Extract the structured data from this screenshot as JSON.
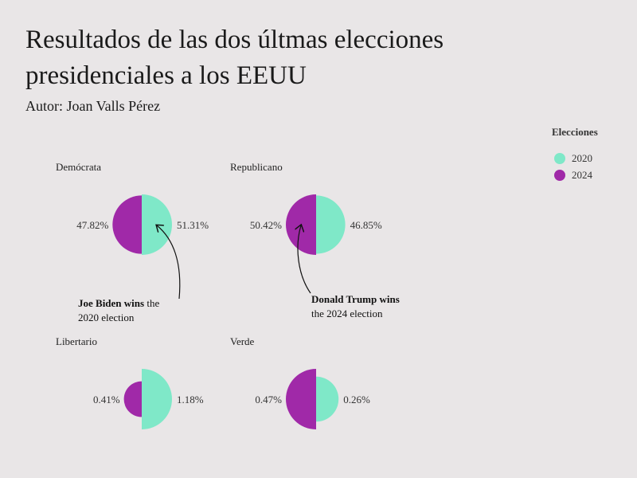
{
  "title": "Resultados de las dos últmas elecciones presidenciales a los EEUU",
  "subtitle": "Autor: Joan Valls Pérez",
  "legend": {
    "title": "Elecciones",
    "items": [
      {
        "label": "2020",
        "color": "#7fe8c8"
      },
      {
        "label": "2024",
        "color": "#a029a8"
      }
    ]
  },
  "chart_data": {
    "type": "pie",
    "description_style": "half-circle comparison per party, area proportional to vote share",
    "series_colors": {
      "2020": "#7fe8c8",
      "2024": "#a029a8"
    },
    "panels": [
      {
        "party": "Demócrata",
        "values": {
          "2020": 51.31,
          "2024": 47.82
        },
        "labels": {
          "2020": "51.31%",
          "2024": "47.82%"
        }
      },
      {
        "party": "Republicano",
        "values": {
          "2020": 46.85,
          "2024": 50.42
        },
        "labels": {
          "2020": "46.85%",
          "2024": "50.42%"
        }
      },
      {
        "party": "Libertario",
        "values": {
          "2020": 1.18,
          "2024": 0.41
        },
        "labels": {
          "2020": "1.18%",
          "2024": "0.41%"
        }
      },
      {
        "party": "Verde",
        "values": {
          "2020": 0.26,
          "2024": 0.47
        },
        "labels": {
          "2020": "0.26%",
          "2024": "0.47%"
        }
      }
    ],
    "annotations": [
      {
        "panel": "Demócrata",
        "bold": "Joe Biden wins",
        "rest": " the",
        "line2": "2020 election"
      },
      {
        "panel": "Republicano",
        "bold": "Donald Trump wins",
        "rest": "",
        "line2": "the 2024 election"
      }
    ]
  }
}
